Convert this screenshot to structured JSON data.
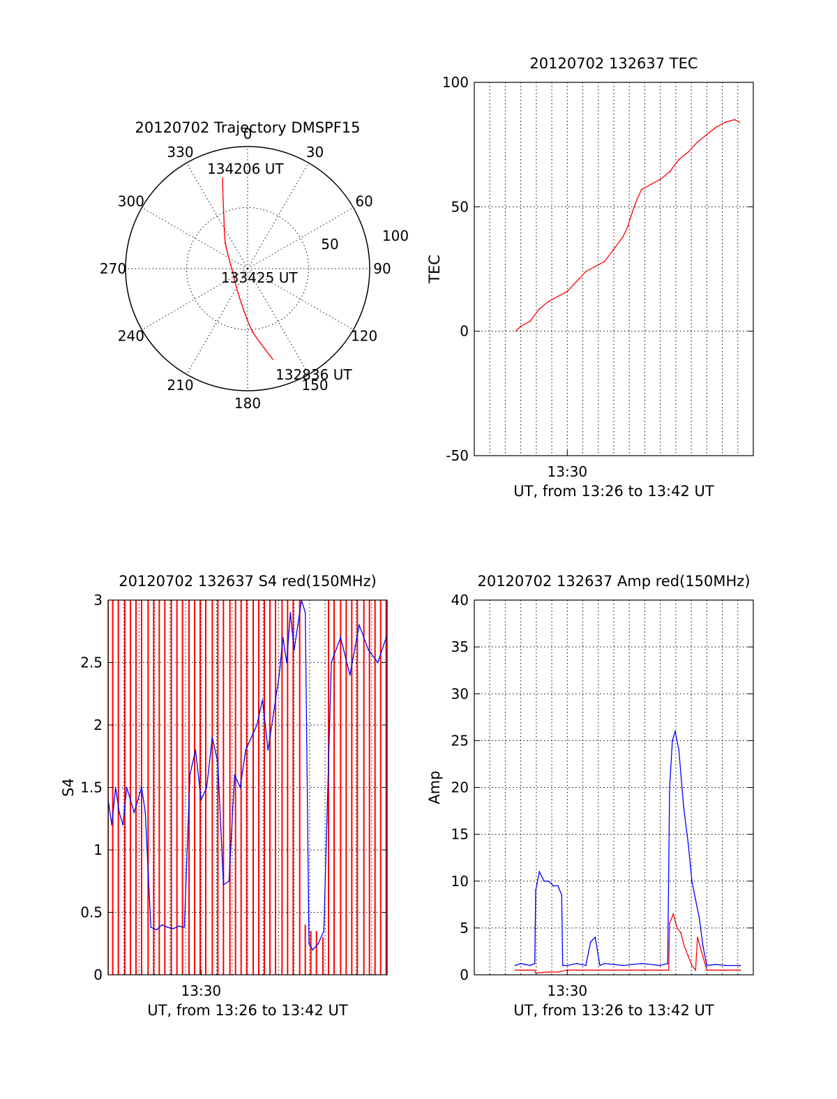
{
  "colors": {
    "red": "#ff0000",
    "blue": "#0000ff",
    "axis": "#000000"
  },
  "chart_data": [
    {
      "id": "trajectory",
      "type": "polar",
      "title": "20120702 Trajectory DMSPF15",
      "azimuth_labels": [
        "0",
        "30",
        "60",
        "90",
        "120",
        "150",
        "180",
        "210",
        "240",
        "270",
        "300",
        "330"
      ],
      "azimuths": [
        0,
        30,
        60,
        90,
        120,
        150,
        180,
        210,
        240,
        270,
        300,
        330
      ],
      "radial_labels": [
        "50",
        "100"
      ],
      "radial_values": [
        50,
        100
      ],
      "r_max": 100,
      "grid": true,
      "annotations": [
        "134206 UT",
        "133425 UT",
        "132836 UT"
      ],
      "track": {
        "color": "red",
        "points": [
          {
            "az": 344.5,
            "r": 77
          },
          {
            "az": 341.0,
            "r": 62
          },
          {
            "az": 334.0,
            "r": 44
          },
          {
            "az": 318.0,
            "r": 28
          },
          {
            "az": 282.0,
            "r": 14
          },
          {
            "az": 205.0,
            "r": 20
          },
          {
            "az": 185.0,
            "r": 35
          },
          {
            "az": 176.0,
            "r": 52
          },
          {
            "az": 168.0,
            "r": 67
          },
          {
            "az": 164.5,
            "r": 77
          }
        ]
      }
    },
    {
      "id": "tec",
      "type": "line",
      "title": "20120702 132637 TEC",
      "ylabel": "TEC",
      "xlabel": "UT, from 13:26 to 13:42 UT",
      "x_tick_labels": [
        "13:30"
      ],
      "x_tick_values": [
        13.5
      ],
      "xlim": [
        13.4,
        13.7
      ],
      "ylim": [
        -50,
        100
      ],
      "y_ticks": [
        -50,
        0,
        50,
        100
      ],
      "x_minor_grid_step_min": 1,
      "grid": true,
      "series": [
        {
          "color": "red",
          "x": [
            13.4447,
            13.45,
            13.46,
            13.47,
            13.48,
            13.49,
            13.5,
            13.51,
            13.52,
            13.53,
            13.54,
            13.55,
            13.56,
            13.565,
            13.57,
            13.575,
            13.58,
            13.59,
            13.6,
            13.61,
            13.62,
            13.63,
            13.64,
            13.65,
            13.66,
            13.67,
            13.68,
            13.685
          ],
          "y": [
            0,
            2,
            4,
            9,
            12,
            14,
            16,
            20,
            24,
            26,
            28,
            33,
            38,
            42,
            48,
            53,
            57,
            59,
            61,
            64,
            69,
            72,
            76,
            79,
            82,
            84,
            85,
            84
          ]
        }
      ]
    },
    {
      "id": "s4",
      "type": "line",
      "title": "20120702 132637 S4 red(150MHz)",
      "ylabel": "S4",
      "xlabel": "UT, from 13:26 to 13:42 UT",
      "x_tick_labels": [
        "13:30"
      ],
      "x_tick_values": [
        13.5
      ],
      "xlim": [
        13.4,
        13.7
      ],
      "ylim": [
        0,
        3
      ],
      "y_tick_labels": [
        "0",
        "0.5",
        "1",
        "1.5",
        "2",
        "2.5",
        "3"
      ],
      "y_ticks": [
        0,
        0.5,
        1,
        1.5,
        2,
        2.5,
        3
      ],
      "grid": true,
      "series": [
        {
          "color": "red",
          "style": "spikes",
          "x": [
            13.4,
            13.405,
            13.411,
            13.418,
            13.424,
            13.43,
            13.436,
            13.443,
            13.449,
            13.455,
            13.461,
            13.468,
            13.474,
            13.48,
            13.487,
            13.493,
            13.499,
            13.505,
            13.512,
            13.518,
            13.524,
            13.531,
            13.537,
            13.543,
            13.549,
            13.556,
            13.562,
            13.568,
            13.574,
            13.58,
            13.587,
            13.593,
            13.599,
            13.606,
            13.612,
            13.618,
            13.624,
            13.631,
            13.637,
            13.643,
            13.65,
            13.656,
            13.662,
            13.668,
            13.675,
            13.681,
            13.687,
            13.693,
            13.699
          ],
          "y": [
            3,
            3,
            3,
            3,
            3,
            3,
            3,
            3,
            3,
            3,
            3,
            3,
            3,
            3,
            3,
            3,
            3,
            3,
            3,
            3,
            3,
            3,
            3,
            3,
            3,
            3,
            3,
            3,
            3,
            3,
            3,
            3,
            3,
            3,
            0.4,
            0.35,
            0.35,
            0.3,
            3,
            3,
            3,
            3,
            3,
            3,
            3,
            3,
            3,
            3,
            3
          ]
        },
        {
          "color": "blue",
          "x": [
            13.4,
            13.404,
            13.408,
            13.412,
            13.416,
            13.42,
            13.424,
            13.428,
            13.432,
            13.436,
            13.44,
            13.446,
            13.452,
            13.458,
            13.464,
            13.47,
            13.476,
            13.482,
            13.488,
            13.494,
            13.5,
            13.506,
            13.512,
            13.518,
            13.524,
            13.53,
            13.536,
            13.542,
            13.548,
            13.554,
            13.56,
            13.566,
            13.572,
            13.578,
            13.584,
            13.588,
            13.592,
            13.596,
            13.6,
            13.604,
            13.608,
            13.612,
            13.616,
            13.62,
            13.626,
            13.632,
            13.64,
            13.65,
            13.66,
            13.67,
            13.68,
            13.69,
            13.699
          ],
          "y": [
            1.4,
            1.2,
            1.5,
            1.3,
            1.2,
            1.5,
            1.4,
            1.3,
            1.4,
            1.5,
            1.3,
            0.38,
            0.36,
            0.4,
            0.38,
            0.37,
            0.39,
            0.38,
            1.6,
            1.8,
            1.4,
            1.5,
            1.9,
            1.7,
            0.72,
            0.75,
            1.6,
            1.5,
            1.8,
            1.9,
            2.0,
            2.2,
            1.8,
            2.1,
            2.4,
            2.7,
            2.5,
            2.9,
            2.6,
            2.8,
            3.0,
            2.9,
            0.25,
            0.2,
            0.25,
            0.35,
            2.5,
            2.7,
            2.4,
            2.8,
            2.6,
            2.5,
            2.7
          ]
        }
      ]
    },
    {
      "id": "amp",
      "type": "line",
      "title": "20120702 132637 Amp red(150MHz)",
      "ylabel": "Amp",
      "xlabel": "UT, from 13:26 to 13:42 UT",
      "x_tick_labels": [
        "13:30"
      ],
      "x_tick_values": [
        13.5
      ],
      "xlim": [
        13.4,
        13.7
      ],
      "ylim": [
        0,
        40
      ],
      "y_ticks": [
        0,
        5,
        10,
        15,
        20,
        25,
        30,
        35,
        40
      ],
      "grid": true,
      "series": [
        {
          "color": "red",
          "x": [
            13.444,
            13.465,
            13.466,
            13.48,
            13.49,
            13.5,
            13.51,
            13.54,
            13.58,
            13.609,
            13.61,
            13.614,
            13.618,
            13.622,
            13.626,
            13.63,
            13.634,
            13.638,
            13.64,
            13.65,
            13.67,
            13.686
          ],
          "y": [
            0.5,
            0.5,
            0.2,
            0.3,
            0.3,
            0.5,
            0.5,
            0.5,
            0.5,
            0.5,
            5.5,
            6.5,
            5,
            4.5,
            3,
            2,
            1,
            0.5,
            4,
            0.5,
            0.5,
            0.5
          ]
        },
        {
          "color": "blue",
          "x": [
            13.444,
            13.45,
            13.455,
            13.46,
            13.465,
            13.466,
            13.47,
            13.475,
            13.48,
            13.485,
            13.49,
            13.494,
            13.495,
            13.5,
            13.51,
            13.52,
            13.525,
            13.53,
            13.535,
            13.54,
            13.56,
            13.58,
            13.6,
            13.608,
            13.61,
            13.613,
            13.616,
            13.62,
            13.625,
            13.63,
            13.634,
            13.638,
            13.642,
            13.646,
            13.65,
            13.66,
            13.67,
            13.686
          ],
          "y": [
            1,
            1.2,
            1.1,
            1,
            1.2,
            9,
            11,
            10,
            10,
            9.5,
            9.5,
            8.5,
            1,
            1,
            1.2,
            1,
            3.5,
            4,
            1,
            1.2,
            1,
            1.2,
            1,
            1.2,
            20,
            25,
            26,
            24,
            18,
            14,
            10,
            8,
            6,
            3,
            1,
            1.1,
            1,
            1
          ]
        }
      ]
    }
  ]
}
